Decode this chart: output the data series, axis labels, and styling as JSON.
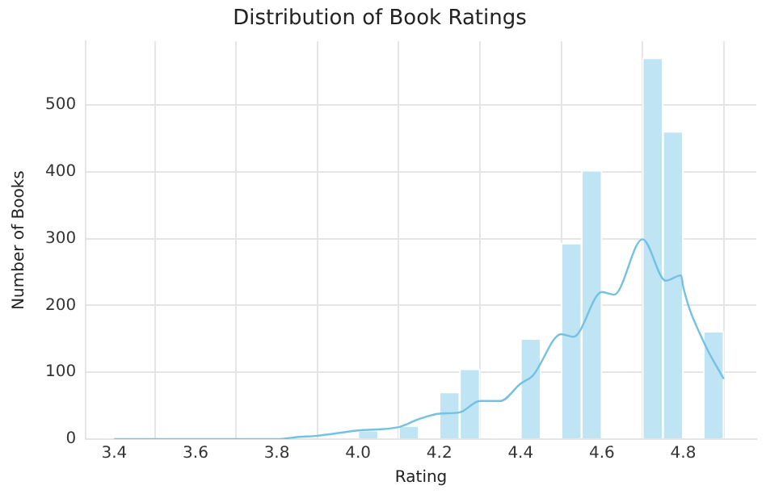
{
  "chart_data": {
    "type": "histogram",
    "title": "Distribution of Book Ratings",
    "xlabel": "Rating",
    "ylabel": "Number of Books",
    "bins": [
      3.4,
      3.45,
      3.5,
      3.55,
      3.6,
      3.65,
      3.7,
      3.75,
      3.8,
      3.85,
      3.9,
      3.95,
      4.0,
      4.05,
      4.1,
      4.15,
      4.2,
      4.25,
      4.3,
      4.35,
      4.4,
      4.45,
      4.5,
      4.55,
      4.6,
      4.65,
      4.7,
      4.75,
      4.8,
      4.85,
      4.9
    ],
    "values": [
      0,
      0,
      0,
      0,
      0,
      0,
      0,
      0,
      0,
      0,
      0,
      0,
      13,
      0,
      20,
      0,
      70,
      105,
      0,
      0,
      150,
      0,
      293,
      402,
      0,
      0,
      570,
      460,
      0,
      161
    ],
    "color": "#bfe4f4",
    "series": [
      {
        "type": "line",
        "color": "#74c1e3",
        "x": [
          3.4,
          3.6,
          3.8,
          3.85,
          3.9,
          4.0,
          4.1,
          4.15,
          4.2,
          4.25,
          4.3,
          4.35,
          4.4,
          4.43,
          4.5,
          4.53,
          4.6,
          4.63,
          4.7,
          4.757,
          4.795,
          4.8,
          4.85,
          4.9
        ],
        "values": [
          0,
          0,
          0,
          3,
          5,
          13,
          18,
          30,
          38,
          40,
          57,
          57,
          83,
          95,
          157,
          153,
          220,
          216,
          299,
          237,
          245,
          228,
          146,
          90
        ]
      }
    ],
    "xlim": [
      3.33,
      4.98
    ],
    "xticks": [
      3.4,
      3.6,
      3.8,
      {
        "value": 4,
        "label": "4.0"
      },
      4.2,
      4.4,
      4.6,
      4.8
    ],
    "ylim": [
      0,
      595
    ],
    "yticks": [
      0,
      100,
      200,
      300,
      400,
      500
    ],
    "grid": true,
    "legend": false
  }
}
